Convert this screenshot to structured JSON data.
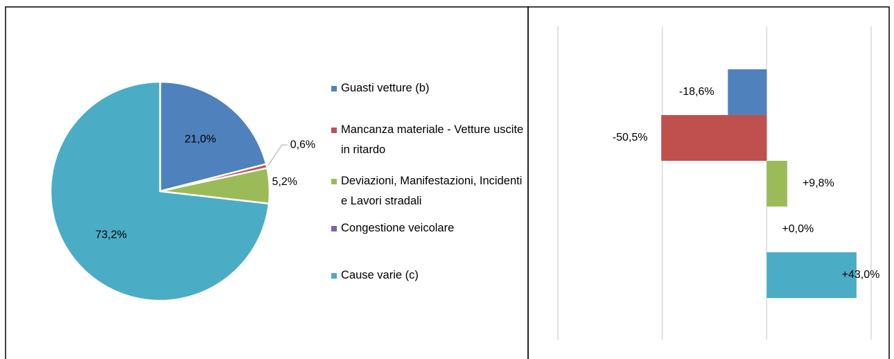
{
  "chart_data": [
    {
      "type": "pie",
      "categories": [
        "Guasti vetture (b)",
        "Mancanza materiale - Vetture uscite in ritardo",
        "Deviazioni, Manifestazioni, Incidenti e Lavori stradali",
        "Congestione veicolare",
        "Cause varie (c)"
      ],
      "values": [
        21.0,
        0.6,
        5.2,
        0,
        73.2
      ],
      "value_labels": [
        "21,0%",
        "0,6%",
        "5,2%",
        null,
        "73,2%"
      ],
      "colors": [
        "#4f81bd",
        "#c0504d",
        "#9bbb59",
        "#8064a2",
        "#4bacc6"
      ],
      "legend": "right"
    },
    {
      "type": "hbar",
      "values": [
        -18.6,
        -50.5,
        9.8,
        0.0,
        43.0
      ],
      "value_labels": [
        "-18,6%",
        "-50,5%",
        "+9,8%",
        "+0,0%",
        "+43,0%"
      ],
      "colors": [
        "#4f81bd",
        "#c0504d",
        "#9bbb59",
        "#8064a2",
        "#4bacc6"
      ],
      "xlim": [
        -100,
        50
      ],
      "xticks": [
        -100,
        -50,
        0,
        50
      ],
      "grid": true
    }
  ]
}
